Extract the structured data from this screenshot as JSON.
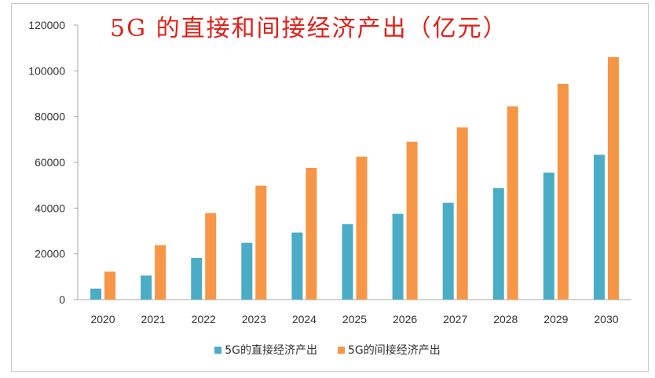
{
  "chart_data": {
    "type": "bar",
    "title": "5G 的直接和间接经济产出（亿元）",
    "categories": [
      "2020",
      "2021",
      "2022",
      "2023",
      "2024",
      "2025",
      "2026",
      "2027",
      "2028",
      "2029",
      "2030"
    ],
    "series": [
      {
        "name": "5G的直接经济产出",
        "color": "#4bacc6",
        "values": [
          4800,
          10500,
          18200,
          24800,
          29300,
          33000,
          37500,
          42300,
          48700,
          55500,
          63300
        ]
      },
      {
        "name": "5G的间接经济产出",
        "color": "#f79646",
        "values": [
          12200,
          23800,
          37800,
          49800,
          57600,
          62500,
          69000,
          75300,
          84500,
          94300,
          106000
        ]
      }
    ],
    "ylim": [
      0,
      120000
    ],
    "yticks": [
      0,
      20000,
      40000,
      60000,
      80000,
      100000,
      120000
    ],
    "ytick_labels": [
      "0",
      "20000",
      "40000",
      "60000",
      "80000",
      "100000",
      "120000"
    ],
    "grid": false,
    "legend_position": "bottom",
    "xlabel": "",
    "ylabel": ""
  }
}
